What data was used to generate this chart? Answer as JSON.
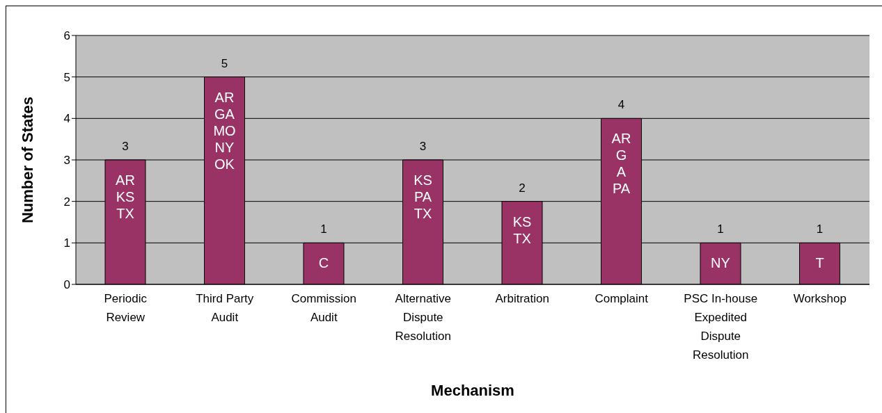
{
  "chart_data": {
    "type": "bar",
    "xlabel": "Mechanism",
    "ylabel": "Number of States",
    "categories": [
      "Periodic Review",
      "Third Party Audit",
      "Commission Audit",
      "Alternative Dispute Resolution",
      "Arbitration",
      "Complaint",
      "PSC In-house Expedited Dispute Resolution",
      "Workshop"
    ],
    "values": [
      3,
      5,
      1,
      3,
      2,
      4,
      1,
      1
    ],
    "color": "#993366",
    "data_labels": true,
    "ylim": [
      0,
      6
    ],
    "yticks": [
      0,
      1,
      2,
      3,
      4,
      5,
      6
    ],
    "grid": "y",
    "legend": false,
    "annotations": [
      "AR\nKS\nTX",
      "AR\nGA\nMO\nNY\nOK",
      "C",
      "KS\nPA\nTX",
      "KS\nTX",
      "AR\nG\nA\nPA",
      "NY",
      "T"
    ]
  }
}
